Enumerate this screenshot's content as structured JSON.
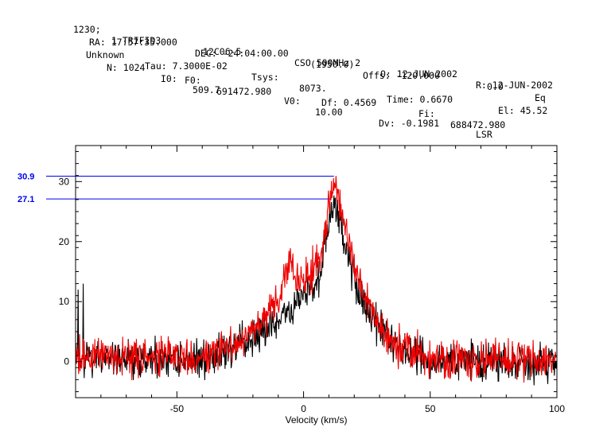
{
  "header": {
    "line1": [
      "1230;",
      "1 TRIFID3",
      "12C06-5",
      "CSO 500MHz 2",
      "O: 12-JUN-2002",
      "R: 12-JUN-2002"
    ],
    "line2": [
      "RA: 17:57:35.000",
      "DEC: -24:04:00.00",
      "(1950.0)",
      "Offs: -120.000",
      "0.0",
      "Eq"
    ],
    "line3": [
      "Unknown",
      "Tau: 7.3000E-02",
      "Tsys:",
      "8073.",
      "Time: 0.6670",
      "El: 45.52"
    ],
    "line4": [
      "N: 1024",
      "I0:",
      "509.7",
      "V0:",
      "10.00",
      "Dv: -0.1981",
      "LSR"
    ],
    "line5": [
      "F0:",
      "691472.980",
      "Df: 0.4569",
      "Fi:",
      "688472.980"
    ]
  },
  "chart_data": {
    "type": "line",
    "title": "",
    "xlabel": "Velocity (km/s)",
    "ylabel": "",
    "xlim": [
      -90,
      100
    ],
    "ylim": [
      -6,
      36
    ],
    "xticks": [
      -50,
      0,
      50,
      100
    ],
    "yticks": [
      0,
      10,
      20,
      30
    ],
    "grid": false,
    "reference_lines": [
      {
        "label": "30.9",
        "value": 30.9,
        "x_end": 12,
        "color": "#0000ee"
      },
      {
        "label": "27.1",
        "value": 27.1,
        "x_end": 11,
        "color": "#0000ee"
      }
    ],
    "series": [
      {
        "color": "#000000",
        "noise": 2.0,
        "profile": [
          [
            -90,
            0.5
          ],
          [
            -60,
            0.3
          ],
          [
            -40,
            0.6
          ],
          [
            -25,
            2.5
          ],
          [
            -15,
            5
          ],
          [
            -5,
            8.5
          ],
          [
            0,
            11
          ],
          [
            5,
            13.5
          ],
          [
            8,
            18
          ],
          [
            10,
            23
          ],
          [
            12,
            26
          ],
          [
            14,
            24
          ],
          [
            17,
            19
          ],
          [
            20,
            14
          ],
          [
            25,
            9
          ],
          [
            30,
            5
          ],
          [
            35,
            3
          ],
          [
            40,
            1.6
          ],
          [
            50,
            0.4
          ],
          [
            70,
            0
          ],
          [
            100,
            0
          ]
        ],
        "spikes": [
          [
            -87,
            13
          ],
          [
            -89,
            12
          ]
        ]
      },
      {
        "color": "#ee0000",
        "noise": 2.0,
        "profile": [
          [
            -90,
            1.0
          ],
          [
            -60,
            0.6
          ],
          [
            -40,
            1.0
          ],
          [
            -25,
            3.5
          ],
          [
            -15,
            7
          ],
          [
            -10,
            10
          ],
          [
            -7,
            15
          ],
          [
            -5,
            17.5
          ],
          [
            -3,
            14
          ],
          [
            0,
            13
          ],
          [
            4,
            15
          ],
          [
            8,
            20
          ],
          [
            10,
            26
          ],
          [
            12,
            29.5
          ],
          [
            14,
            27
          ],
          [
            16,
            23
          ],
          [
            19,
            18
          ],
          [
            23,
            12
          ],
          [
            28,
            7
          ],
          [
            33,
            4
          ],
          [
            40,
            2
          ],
          [
            50,
            0.6
          ],
          [
            70,
            0.3
          ],
          [
            100,
            0.5
          ]
        ],
        "spikes": []
      }
    ]
  }
}
